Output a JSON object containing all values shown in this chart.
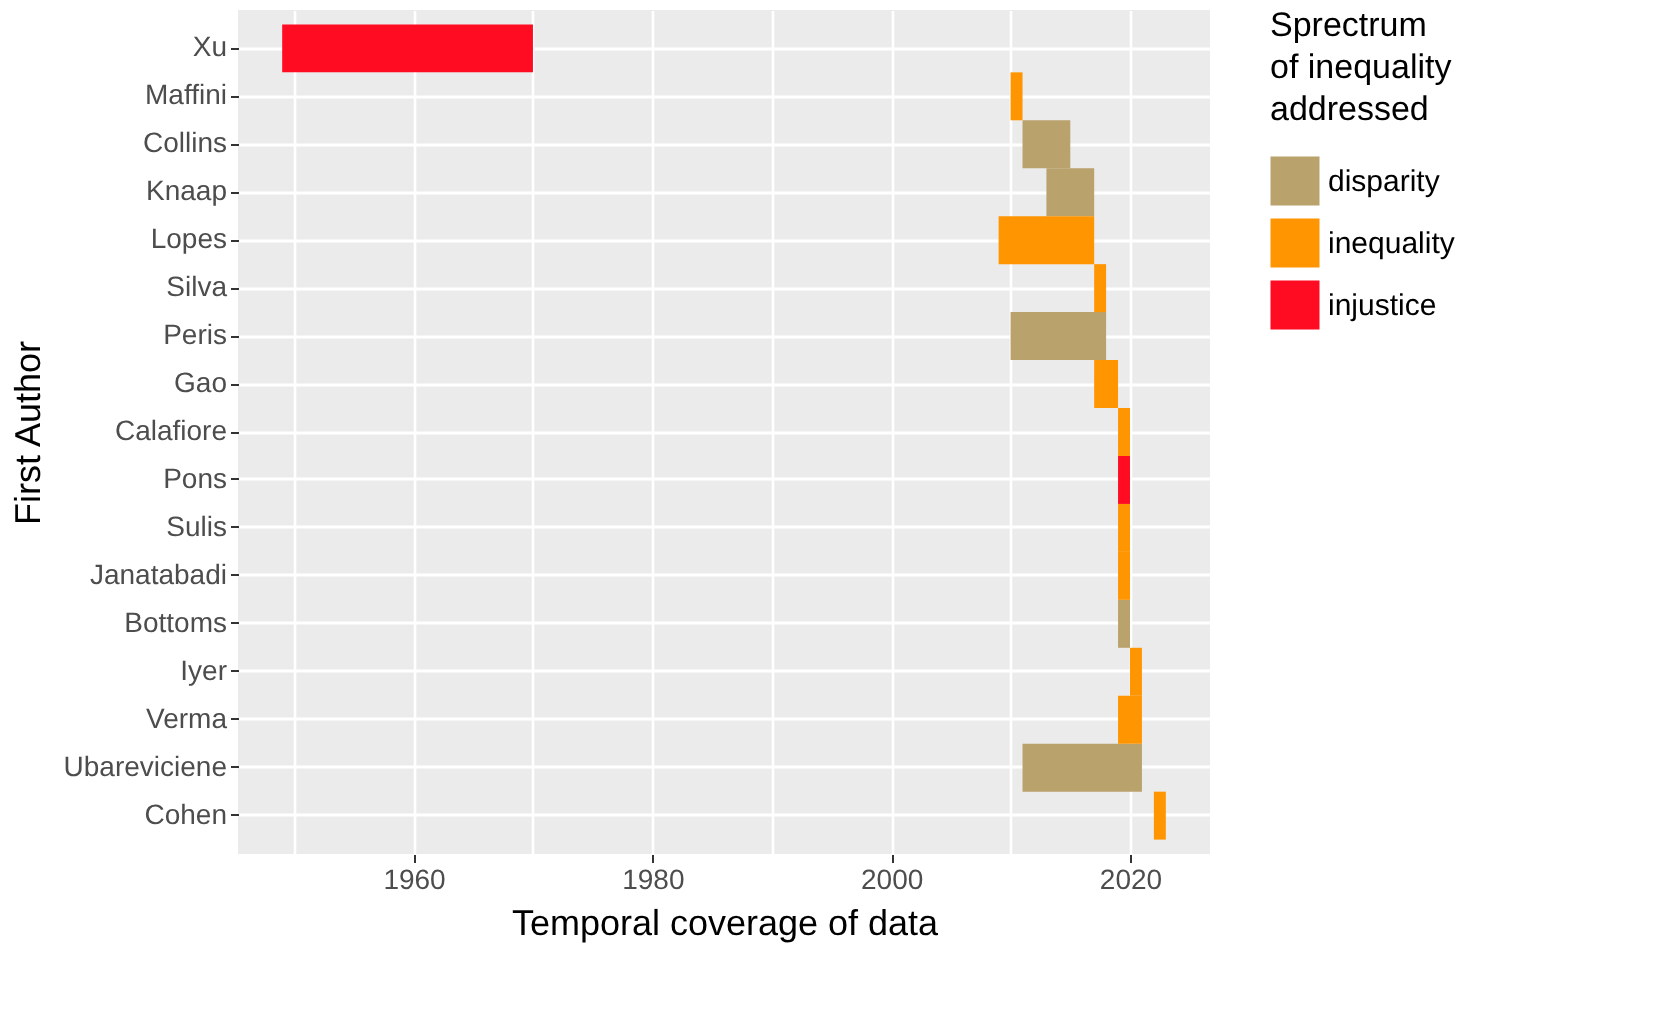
{
  "chart_data": {
    "type": "bar",
    "orientation": "horizontal",
    "xlabel": "Temporal coverage of data",
    "ylabel": "First Author",
    "legend_title": "Sprectrum\nof inequality\naddressed",
    "legend": "right",
    "grid": true,
    "categories": [
      "Xu",
      "Maffini",
      "Collins",
      "Knaap",
      "Lopes",
      "Silva",
      "Peris",
      "Gao",
      "Calafiore",
      "Pons",
      "Sulis",
      "Janatabadi",
      "Bottoms",
      "Iyer",
      "Verma",
      "Ubareviciene",
      "Cohen"
    ],
    "xlim": [
      1945.3,
      2026.7
    ],
    "xticks": [
      {
        "value": 1950,
        "label": null
      },
      1960,
      {
        "value": 1970,
        "label": null
      },
      1980,
      {
        "value": 1990,
        "label": null
      },
      2000,
      {
        "value": 2010,
        "label": null
      },
      2020
    ],
    "series": [
      {
        "name": "disparity",
        "color": "#b9a26b",
        "base": [
          null,
          null,
          2011,
          2013,
          null,
          null,
          2010,
          null,
          null,
          null,
          null,
          null,
          2019,
          null,
          null,
          2011,
          null
        ],
        "values": [
          null,
          null,
          4,
          4,
          null,
          null,
          8,
          null,
          null,
          null,
          null,
          null,
          1,
          null,
          null,
          10,
          null
        ]
      },
      {
        "name": "inequality",
        "color": "#ff9500",
        "base": [
          null,
          2010,
          null,
          null,
          2009,
          2017,
          null,
          2017,
          2019,
          null,
          2019,
          2019,
          null,
          2020,
          2019,
          null,
          2022
        ],
        "values": [
          null,
          1,
          null,
          null,
          8,
          1,
          null,
          2,
          1,
          null,
          1,
          1,
          null,
          1,
          2,
          null,
          1
        ]
      },
      {
        "name": "injustice",
        "color": "#ff0b22",
        "base": [
          1949,
          null,
          null,
          null,
          null,
          null,
          null,
          null,
          null,
          2019,
          null,
          null,
          null,
          null,
          null,
          null,
          null
        ],
        "values": [
          21,
          null,
          null,
          null,
          null,
          null,
          null,
          null,
          null,
          1,
          null,
          null,
          null,
          null,
          null,
          null,
          null
        ]
      }
    ]
  }
}
